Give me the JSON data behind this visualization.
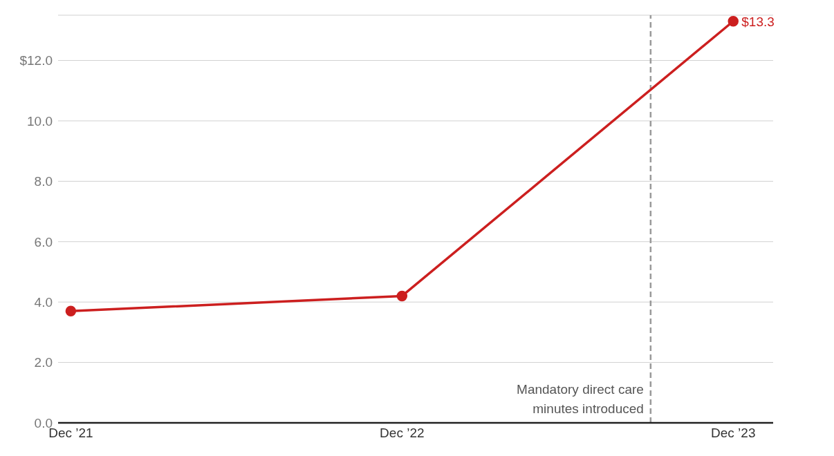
{
  "chart_data": {
    "type": "line",
    "x": [
      "2021-12",
      "2022-12",
      "2023-12"
    ],
    "xlim": [
      "2021-11-17",
      "2024-01-14"
    ],
    "xticks": [
      {
        "value": "2021-12",
        "label": "Dec ’21"
      },
      {
        "value": "2022-12",
        "label": "Dec ’22"
      },
      {
        "value": "2023-12",
        "label": "Dec ’23"
      }
    ],
    "ylim": [
      0,
      13.5
    ],
    "yticks": [
      {
        "value": 0,
        "label": "0.0"
      },
      {
        "value": 2,
        "label": "2.0"
      },
      {
        "value": 4,
        "label": "4.0"
      },
      {
        "value": 6,
        "label": "6.0"
      },
      {
        "value": 8,
        "label": "8.0"
      },
      {
        "value": 10,
        "label": "10.0"
      },
      {
        "value": 12,
        "label": "$12.0"
      }
    ],
    "series": [
      {
        "color": "#cc1f1f",
        "values": [
          3.7,
          4.2,
          13.3
        ],
        "value_labels": [
          null,
          null,
          "$13.3"
        ]
      }
    ],
    "ref_lines": [
      {
        "axis": "x",
        "value": "2023-09",
        "label": "Mandatory direct care minutes introduced",
        "color": "#999999",
        "line_style": "dashed"
      }
    ],
    "grid": "y",
    "marker": "circle",
    "line_style": "solid"
  }
}
